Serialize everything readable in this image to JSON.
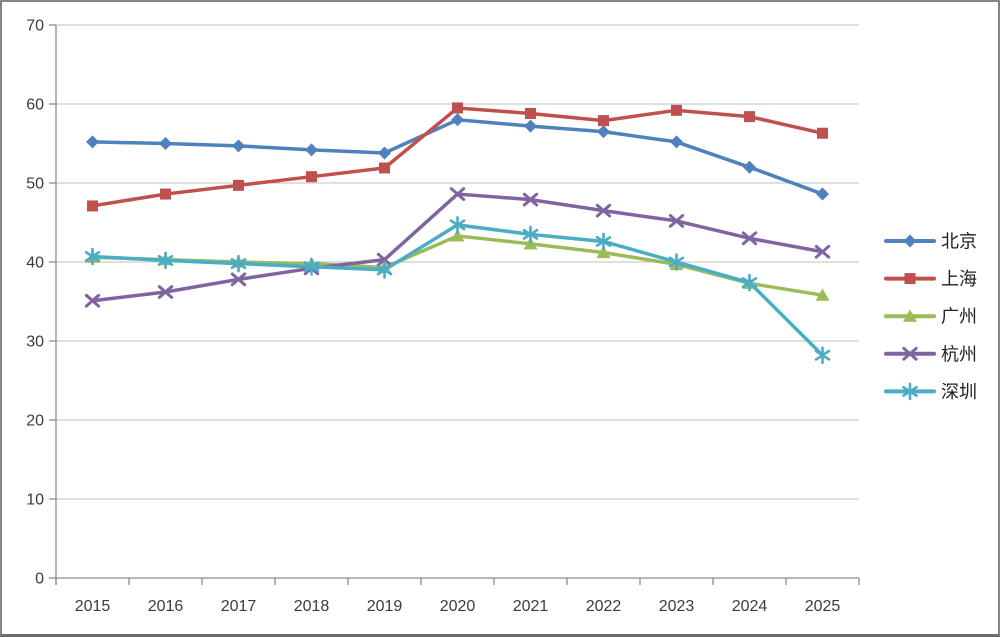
{
  "chart_data": {
    "type": "line",
    "title": "",
    "xlabel": "",
    "ylabel": "",
    "categories": [
      "2015",
      "2016",
      "2017",
      "2018",
      "2019",
      "2020",
      "2021",
      "2022",
      "2023",
      "2024",
      "2025"
    ],
    "series": [
      {
        "name": "北京",
        "id": "beijing",
        "color": "#4F81BD",
        "marker": "diamond",
        "values": [
          55.2,
          55.0,
          54.7,
          54.2,
          53.8,
          58.0,
          57.2,
          56.5,
          55.2,
          52.0,
          48.6
        ]
      },
      {
        "name": "上海",
        "id": "shanghai",
        "color": "#C0504D",
        "marker": "square",
        "values": [
          47.1,
          48.6,
          49.7,
          50.8,
          51.9,
          59.5,
          58.8,
          57.9,
          59.2,
          58.4,
          56.3
        ]
      },
      {
        "name": "广州",
        "id": "guangzhou",
        "color": "#9BBB59",
        "marker": "triangle",
        "values": [
          40.6,
          40.3,
          40.0,
          39.8,
          39.3,
          43.3,
          42.3,
          41.2,
          39.7,
          37.3,
          35.8
        ]
      },
      {
        "name": "杭州",
        "id": "hangzhou",
        "color": "#8064A2",
        "marker": "x",
        "values": [
          35.1,
          36.2,
          37.8,
          39.2,
          40.3,
          48.6,
          47.9,
          46.5,
          45.2,
          43.0,
          41.3
        ]
      },
      {
        "name": "深圳",
        "id": "shenzhen",
        "color": "#4BACC6",
        "marker": "asterisk",
        "values": [
          40.7,
          40.2,
          39.8,
          39.4,
          39.0,
          44.7,
          43.5,
          42.6,
          40.0,
          37.4,
          28.2
        ]
      }
    ],
    "ylim": [
      0,
      70
    ],
    "yticks": [
      0,
      10,
      20,
      30,
      40,
      50,
      60,
      70
    ],
    "grid": true,
    "legend_position": "right"
  },
  "colors": {
    "background": "#FFFFFF",
    "gridline": "#BFBFBF",
    "axis": "#8C8C8C",
    "tick_text": "#3B3B3B",
    "legend_text": "#1F1F1F",
    "frame_border": "#858585"
  }
}
